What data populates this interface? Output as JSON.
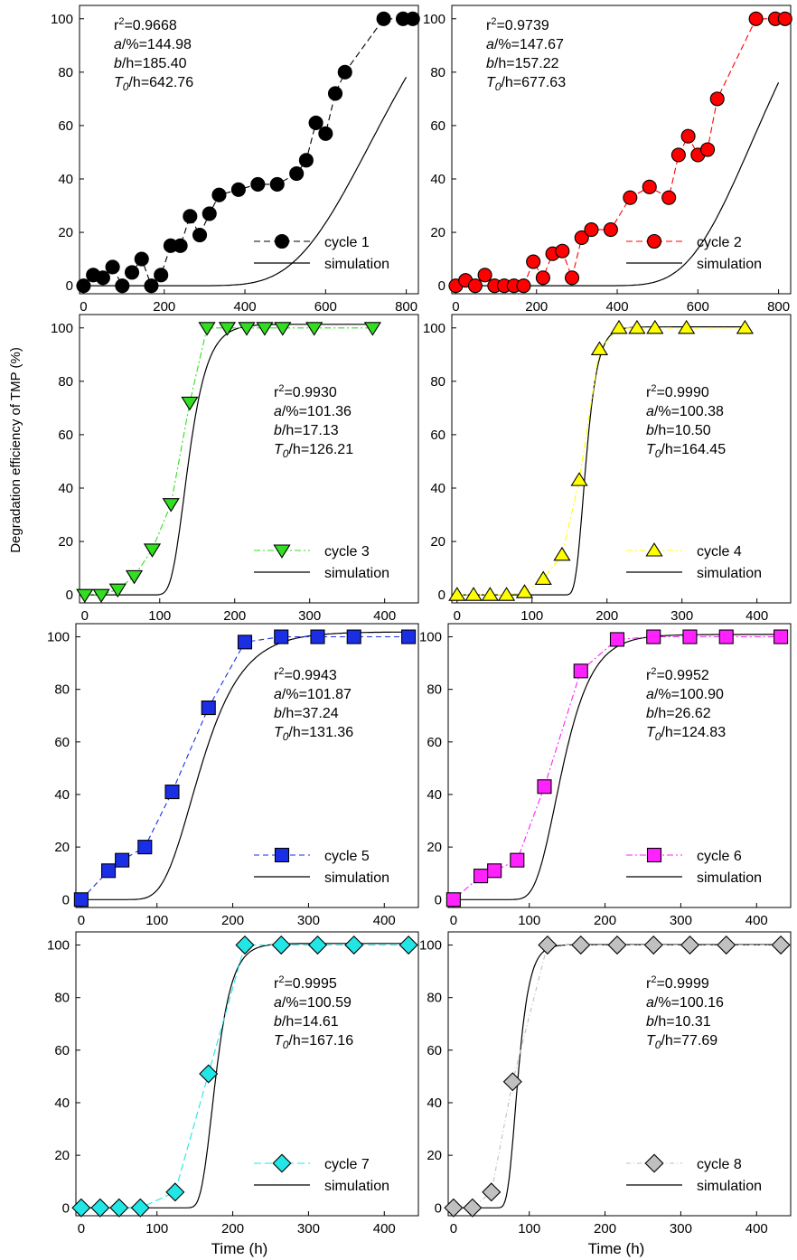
{
  "figure": {
    "ylabel": "Degradation efficiency of TMP (%)",
    "xlabel": "Time (h)"
  },
  "chart_data": [
    {
      "type": "scatter",
      "xlim": [
        -10,
        830
      ],
      "xticks": [
        0,
        200,
        400,
        600,
        800
      ],
      "ylim": [
        -3,
        105
      ],
      "yticks": [
        0,
        20,
        40,
        60,
        80,
        100
      ],
      "marker": "circle",
      "color": "#000000",
      "dash": "7,4",
      "legend": {
        "series": "cycle 1",
        "simulation": "simulation",
        "position": "bottom-right"
      },
      "stats": {
        "r2": "0.9668",
        "a_label": "/%=",
        "a": "144.98",
        "b_label": "/h=",
        "b": "185.40",
        "t_label": "/h=",
        "t": "642.76",
        "position": "top-left"
      },
      "model": {
        "a": 144.98,
        "b": 185.4,
        "t0": 642.76,
        "end": 800
      },
      "series": [
        {
          "name": "cycle 1",
          "x": [
            0,
            24,
            48,
            72,
            96,
            120,
            144,
            168,
            192,
            216,
            240,
            264,
            288,
            312,
            336,
            384,
            432,
            480,
            528,
            552,
            576,
            600,
            624,
            648,
            744,
            792,
            816
          ],
          "y": [
            0,
            4,
            3,
            7,
            0,
            5,
            10,
            0,
            4,
            15,
            15,
            26,
            19,
            27,
            34,
            36,
            38,
            38,
            42,
            47,
            61,
            57,
            72,
            80,
            100,
            100,
            100
          ]
        }
      ]
    },
    {
      "type": "scatter",
      "xlim": [
        -10,
        830
      ],
      "xticks": [
        0,
        200,
        400,
        600,
        800
      ],
      "ylim": [
        -3,
        105
      ],
      "yticks": [
        0,
        20,
        40,
        60,
        80,
        100
      ],
      "marker": "circle",
      "color": "#ff0000",
      "dash": "7,4",
      "legend": {
        "series": "cycle 2",
        "simulation": "simulation",
        "position": "bottom-right"
      },
      "stats": {
        "r2": "0.9739",
        "a_label": "/%=",
        "a": "147.67",
        "b_label": "/h=",
        "b": "157.22",
        "t_label": "/h=",
        "t": "677.63",
        "position": "top-left"
      },
      "model": {
        "a": 147.67,
        "b": 157.22,
        "t0": 677.63,
        "end": 800
      },
      "series": [
        {
          "name": "cycle 2",
          "x": [
            0,
            24,
            48,
            72,
            96,
            120,
            144,
            168,
            192,
            216,
            240,
            264,
            288,
            312,
            336,
            384,
            432,
            480,
            528,
            552,
            576,
            600,
            624,
            648,
            744,
            792,
            816
          ],
          "y": [
            0,
            2,
            0,
            4,
            0,
            0,
            0,
            0,
            9,
            3,
            12,
            13,
            3,
            18,
            21,
            21,
            33,
            37,
            33,
            49,
            56,
            49,
            51,
            70,
            100,
            100,
            100
          ]
        }
      ]
    },
    {
      "type": "scatter",
      "xlim": [
        -7,
        445
      ],
      "xticks": [
        0,
        100,
        200,
        300,
        400
      ],
      "ylim": [
        -3,
        105
      ],
      "yticks": [
        0,
        20,
        40,
        60,
        80,
        100
      ],
      "marker": "triangle-down",
      "color": "#33dd22",
      "dash": "7,3,2,3",
      "legend": {
        "series": "cycle 3",
        "simulation": "simulation",
        "position": "bottom-right"
      },
      "stats": {
        "r2": "0.9930",
        "a_label": "/%=",
        "a": "101.36",
        "b_label": "/h=",
        "b": "17.13",
        "t_label": "/h=",
        "t": "126.21",
        "position": "top-right"
      },
      "model": {
        "a": 101.36,
        "b": 17.13,
        "t0": 126.21,
        "end": 384
      },
      "series": [
        {
          "name": "cycle 3",
          "x": [
            0,
            22,
            44,
            66,
            90,
            115,
            140,
            163,
            190,
            216,
            240,
            264,
            306,
            384
          ],
          "y": [
            0,
            0,
            2,
            7,
            17,
            34,
            72,
            100,
            100,
            100,
            100,
            100,
            100,
            100
          ]
        }
      ]
    },
    {
      "type": "scatter",
      "xlim": [
        -7,
        445
      ],
      "xticks": [
        0,
        100,
        200,
        300,
        400
      ],
      "ylim": [
        -3,
        105
      ],
      "yticks": [
        0,
        20,
        40,
        60,
        80,
        100
      ],
      "marker": "triangle-up",
      "color": "#ffff00",
      "dash": "7,3,2,3",
      "legend": {
        "series": "cycle 4",
        "simulation": "simulation",
        "position": "bottom-right"
      },
      "stats": {
        "r2": "0.9990",
        "a_label": "/%=",
        "a": "100.38",
        "b_label": "/h=",
        "b": "10.50",
        "t_label": "/h=",
        "t": "164.45",
        "position": "top-right"
      },
      "model": {
        "a": 100.38,
        "b": 10.5,
        "t0": 164.45,
        "end": 384
      },
      "series": [
        {
          "name": "cycle 4",
          "x": [
            0,
            22,
            44,
            66,
            90,
            115,
            140,
            163,
            190,
            216,
            240,
            264,
            306,
            384
          ],
          "y": [
            0,
            0,
            0,
            0,
            1,
            6,
            15,
            43,
            92,
            100,
            100,
            100,
            100,
            100
          ]
        }
      ]
    },
    {
      "type": "scatter",
      "xlim": [
        -7,
        445
      ],
      "xticks": [
        0,
        100,
        200,
        300,
        400
      ],
      "ylim": [
        -3,
        105
      ],
      "yticks": [
        0,
        20,
        40,
        60,
        80,
        100
      ],
      "marker": "square",
      "color": "#1a2ee6",
      "dash": "6,4",
      "legend": {
        "series": "cycle 5",
        "simulation": "simulation",
        "position": "bottom-right"
      },
      "stats": {
        "r2": "0.9943",
        "a_label": "/%=",
        "a": "101.87",
        "b_label": "/h=",
        "b": "37.24",
        "t_label": "/h=",
        "t": "131.36",
        "position": "top-right"
      },
      "model": {
        "a": 101.87,
        "b": 37.24,
        "t0": 131.36,
        "end": 440
      },
      "series": [
        {
          "name": "cycle 5",
          "x": [
            0,
            36,
            54,
            84,
            120,
            168,
            216,
            264,
            312,
            360,
            432
          ],
          "y": [
            0,
            11,
            15,
            20,
            41,
            73,
            98,
            100,
            100,
            100,
            100
          ]
        }
      ]
    },
    {
      "type": "scatter",
      "xlim": [
        -7,
        445
      ],
      "xticks": [
        0,
        100,
        200,
        300,
        400
      ],
      "ylim": [
        -3,
        105
      ],
      "yticks": [
        0,
        20,
        40,
        60,
        80,
        100
      ],
      "marker": "square",
      "color": "#ff22ff",
      "dash": "7,3,2,3",
      "legend": {
        "series": "cycle 6",
        "simulation": "simulation",
        "position": "bottom-right"
      },
      "stats": {
        "r2": "0.9952",
        "a_label": "/%=",
        "a": "100.90",
        "b_label": "/h=",
        "b": "26.62",
        "t_label": "/h=",
        "t": "124.83",
        "position": "top-right"
      },
      "model": {
        "a": 100.9,
        "b": 26.62,
        "t0": 124.83,
        "end": 440
      },
      "series": [
        {
          "name": "cycle 6",
          "x": [
            0,
            36,
            54,
            84,
            120,
            168,
            216,
            264,
            312,
            360,
            432
          ],
          "y": [
            0,
            9,
            11,
            15,
            43,
            87,
            99,
            100,
            100,
            100,
            100
          ]
        }
      ]
    },
    {
      "type": "scatter",
      "xlim": [
        -7,
        445
      ],
      "xticks": [
        0,
        100,
        200,
        300,
        400
      ],
      "ylim": [
        -3,
        105
      ],
      "yticks": [
        0,
        20,
        40,
        60,
        80,
        100
      ],
      "marker": "diamond",
      "color": "#22e6e6",
      "dash": "8,4",
      "legend": {
        "series": "cycle 7",
        "simulation": "simulation",
        "position": "bottom-right"
      },
      "stats": {
        "r2": "0.9995",
        "a_label": "/%=",
        "a": "100.59",
        "b_label": "/h=",
        "b": "14.61",
        "t_label": "/h=",
        "t": "167.16",
        "position": "top-right"
      },
      "model": {
        "a": 100.59,
        "b": 14.61,
        "t0": 167.16,
        "end": 440
      },
      "series": [
        {
          "name": "cycle 7",
          "x": [
            0,
            25,
            50,
            78,
            124,
            168,
            216,
            264,
            312,
            360,
            432
          ],
          "y": [
            0,
            0,
            0,
            0,
            6,
            51,
            100,
            100,
            100,
            100,
            100
          ]
        }
      ]
    },
    {
      "type": "scatter",
      "xlim": [
        -7,
        445
      ],
      "xticks": [
        0,
        100,
        200,
        300,
        400
      ],
      "ylim": [
        -3,
        105
      ],
      "yticks": [
        0,
        20,
        40,
        60,
        80,
        100
      ],
      "marker": "diamond",
      "color": "#c0c0c0",
      "dash": "5,3,1,3",
      "legend": {
        "series": "cycle 8",
        "simulation": "simulation",
        "position": "bottom-right"
      },
      "stats": {
        "r2": "0.9999",
        "a_label": "/%=",
        "a": "100.16",
        "b_label": "/h=",
        "b": "10.31",
        "t_label": "/h=",
        "t": "77.69",
        "position": "top-right"
      },
      "model": {
        "a": 100.16,
        "b": 10.31,
        "t0": 77.69,
        "end": 440
      },
      "series": [
        {
          "name": "cycle 8",
          "x": [
            0,
            25,
            50,
            78,
            124,
            168,
            216,
            264,
            312,
            360,
            432
          ],
          "y": [
            0,
            0,
            6,
            48,
            100,
            100,
            100,
            100,
            100,
            100,
            100
          ]
        }
      ]
    }
  ]
}
